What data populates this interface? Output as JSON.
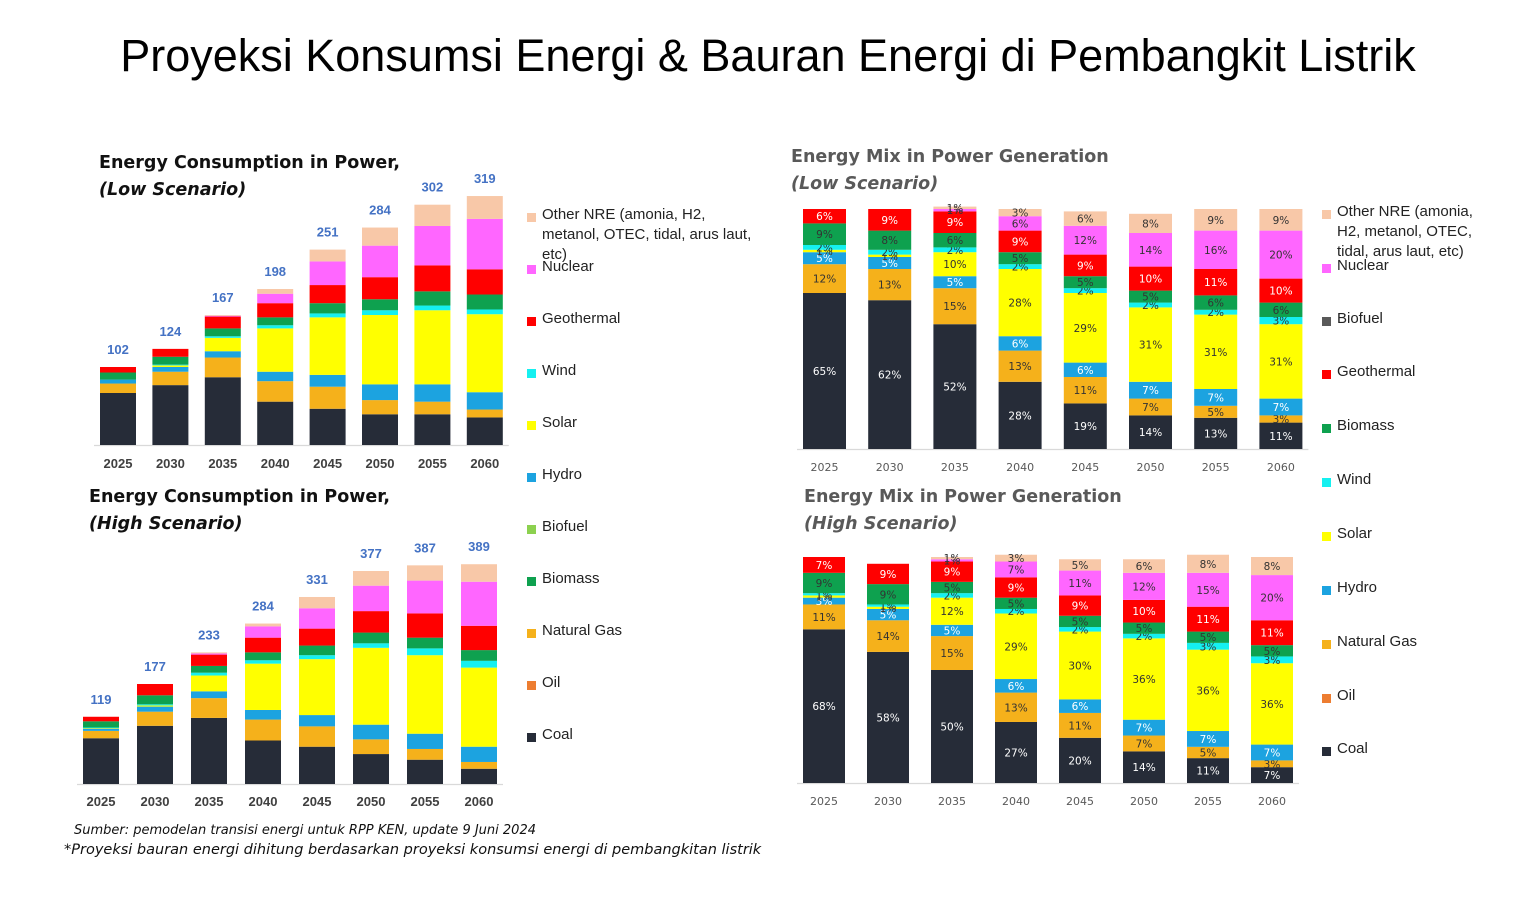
{
  "page_title": "Proyeksi Konsumsi Energi & Bauran Energi di Pembangkit Listrik",
  "colors": {
    "Coal": "#262c38",
    "Oil": "#ed7d31",
    "Natural Gas": "#f5b11b",
    "Biomass": "#0ea14f",
    "Biofuel": "#8cd14f",
    "Biofuel (mix)": "#595959",
    "Hydro": "#1ca3e0",
    "Solar": "#ffff00",
    "Wind": "#15f0f0",
    "Geothermal": "#ff0000",
    "Nuclear": "#ff66ff",
    "Other NRE": "#f8c8a8"
  },
  "legend_left": [
    {
      "key": "Other NRE",
      "label": "Other NRE (amonia, H2, metanol, OTEC, tidal, arus laut, etc)"
    },
    {
      "key": "Nuclear",
      "label": "Nuclear"
    },
    {
      "key": "Geothermal",
      "label": "Geothermal"
    },
    {
      "key": "Wind",
      "label": "Wind"
    },
    {
      "key": "Solar",
      "label": "Solar"
    },
    {
      "key": "Hydro",
      "label": "Hydro"
    },
    {
      "key": "Biofuel",
      "label": "Biofuel"
    },
    {
      "key": "Biomass",
      "label": "Biomass"
    },
    {
      "key": "Natural Gas",
      "label": "Natural Gas"
    },
    {
      "key": "Oil",
      "label": "Oil"
    },
    {
      "key": "Coal",
      "label": "Coal"
    }
  ],
  "legend_right": [
    {
      "key": "Other NRE",
      "label": "Other NRE (amonia, H2, metanol, OTEC, tidal, arus laut, etc)"
    },
    {
      "key": "Nuclear",
      "label": "Nuclear"
    },
    {
      "key": "Biofuel (mix)",
      "label": "Biofuel"
    },
    {
      "key": "Geothermal",
      "label": "Geothermal"
    },
    {
      "key": "Biomass",
      "label": "Biomass"
    },
    {
      "key": "Wind",
      "label": "Wind"
    },
    {
      "key": "Solar",
      "label": "Solar"
    },
    {
      "key": "Hydro",
      "label": "Hydro"
    },
    {
      "key": "Natural Gas",
      "label": "Natural Gas"
    },
    {
      "key": "Oil",
      "label": "Oil"
    },
    {
      "key": "Coal",
      "label": "Coal"
    }
  ],
  "footnote": {
    "source": "Sumber: pemodelan transisi energi untuk RPP KEN, update 9 Juni 2024",
    "note": "*Proyeksi bauran energi dihitung berdasarkan proyeksi konsumsi energi di pembangkitan listrik"
  },
  "chart_data": [
    {
      "id": "consumption_low",
      "type": "bar",
      "title": "Energy Consumption in Power,",
      "subtitle": "(Low Scenario)",
      "categories": [
        "2025",
        "2030",
        "2035",
        "2040",
        "2045",
        "2050",
        "2055",
        "2060"
      ],
      "totals": [
        102,
        124,
        167,
        198,
        251,
        284,
        302,
        319
      ],
      "ylim": [
        0,
        330
      ],
      "series": [
        {
          "name": "Coal",
          "values": [
            66,
            76,
            86,
            55,
            46,
            39,
            39,
            35
          ]
        },
        {
          "name": "Natural Gas",
          "values": [
            12,
            17,
            25,
            26,
            28,
            18,
            16,
            10
          ]
        },
        {
          "name": "Hydro",
          "values": [
            5,
            6,
            8,
            12,
            15,
            20,
            22,
            22
          ]
        },
        {
          "name": "Solar",
          "values": [
            0,
            2,
            17,
            55,
            73,
            88,
            94,
            99
          ]
        },
        {
          "name": "Wind",
          "values": [
            0,
            1,
            2,
            4,
            5,
            6,
            6,
            6
          ]
        },
        {
          "name": "Biomass",
          "values": [
            9,
            10,
            10,
            10,
            13,
            14,
            18,
            19
          ]
        },
        {
          "name": "Geothermal",
          "values": [
            7,
            10,
            15,
            18,
            23,
            28,
            33,
            32
          ]
        },
        {
          "name": "Nuclear",
          "values": [
            0,
            0,
            1,
            12,
            30,
            40,
            50,
            64
          ]
        },
        {
          "name": "Other NRE",
          "values": [
            0,
            0,
            1,
            6,
            15,
            23,
            27,
            29
          ]
        }
      ]
    },
    {
      "id": "consumption_high",
      "type": "bar",
      "title": "Energy Consumption in Power,",
      "subtitle": "(High Scenario)",
      "categories": [
        "2025",
        "2030",
        "2035",
        "2040",
        "2045",
        "2050",
        "2055",
        "2060"
      ],
      "totals": [
        119,
        177,
        233,
        284,
        331,
        377,
        387,
        389
      ],
      "ylim": [
        0,
        400
      ],
      "series": [
        {
          "name": "Coal",
          "values": [
            81,
            103,
            117,
            77,
            66,
            53,
            43,
            27
          ]
        },
        {
          "name": "Natural Gas",
          "values": [
            13,
            25,
            35,
            37,
            36,
            26,
            19,
            12
          ]
        },
        {
          "name": "Hydro",
          "values": [
            4,
            9,
            12,
            17,
            20,
            26,
            27,
            27
          ]
        },
        {
          "name": "Solar",
          "values": [
            1,
            2,
            28,
            82,
            99,
            136,
            139,
            140
          ]
        },
        {
          "name": "Wind",
          "values": [
            1,
            2,
            5,
            6,
            7,
            8,
            12,
            12
          ]
        },
        {
          "name": "Biomass",
          "values": [
            11,
            16,
            12,
            14,
            17,
            19,
            19,
            19
          ]
        },
        {
          "name": "Geothermal",
          "values": [
            8,
            20,
            20,
            26,
            30,
            38,
            43,
            43
          ]
        },
        {
          "name": "Nuclear",
          "values": [
            0,
            0,
            2,
            20,
            36,
            45,
            58,
            78
          ]
        },
        {
          "name": "Other NRE",
          "values": [
            0,
            0,
            2,
            5,
            20,
            26,
            27,
            31
          ]
        }
      ]
    },
    {
      "id": "mix_low",
      "type": "bar",
      "title": "Energy Mix in Power Generation",
      "subtitle": "(Low Scenario)",
      "categories": [
        "2025",
        "2030",
        "2035",
        "2040",
        "2045",
        "2050",
        "2055",
        "2060"
      ],
      "ylim": [
        0,
        100
      ],
      "series": [
        {
          "name": "Coal",
          "values": [
            65,
            62,
            52,
            28,
            19,
            14,
            13,
            11
          ],
          "labels": [
            "65%",
            "62%",
            "52%",
            "28%",
            "19%",
            "14%",
            "13%",
            "11%"
          ]
        },
        {
          "name": "Natural Gas",
          "values": [
            12,
            13,
            15,
            13,
            11,
            7,
            5,
            3
          ],
          "labels": [
            "12%",
            "13%",
            "15%",
            "13%",
            "11%",
            "7%",
            "5%",
            "3%"
          ]
        },
        {
          "name": "Hydro",
          "values": [
            5,
            5,
            5,
            6,
            6,
            7,
            7,
            7
          ],
          "labels": [
            "5%",
            "5%",
            "5%",
            "6%",
            "6%",
            "7%",
            "7%",
            "7%"
          ]
        },
        {
          "name": "Solar",
          "values": [
            1,
            1,
            10,
            28,
            29,
            31,
            31,
            31
          ],
          "labels": [
            "1%",
            "1%",
            "10%",
            "28%",
            "29%",
            "31%",
            "31%",
            "31%"
          ]
        },
        {
          "name": "Wind",
          "values": [
            2,
            2,
            2,
            2,
            2,
            2,
            2,
            3
          ],
          "labels": [
            "2%",
            "2%",
            "2%",
            "2%",
            "2%",
            "2%",
            "2%",
            "3%"
          ]
        },
        {
          "name": "Biomass",
          "values": [
            9,
            8,
            6,
            5,
            5,
            5,
            6,
            6
          ],
          "labels": [
            "9%",
            "8%",
            "6%",
            "5%",
            "5%",
            "5%",
            "6%",
            "6%"
          ]
        },
        {
          "name": "Geothermal",
          "values": [
            6,
            9,
            9,
            9,
            9,
            10,
            11,
            10
          ],
          "labels": [
            "6%",
            "9%",
            "9%",
            "9%",
            "9%",
            "10%",
            "11%",
            "10%"
          ]
        },
        {
          "name": "Nuclear",
          "values": [
            0,
            0,
            1,
            6,
            12,
            14,
            16,
            20
          ],
          "labels": [
            "0%",
            "0%",
            "1%",
            "6%",
            "12%",
            "14%",
            "16%",
            "20%"
          ]
        },
        {
          "name": "Other NRE",
          "values": [
            0,
            0,
            1,
            3,
            6,
            8,
            9,
            9
          ],
          "labels": [
            "0%",
            "0%",
            "1%",
            "3%",
            "6%",
            "8%",
            "9%",
            "9%"
          ]
        }
      ]
    },
    {
      "id": "mix_high",
      "type": "bar",
      "title": "Energy Mix in Power Generation",
      "subtitle": "(High Scenario)",
      "categories": [
        "2025",
        "2030",
        "2035",
        "2040",
        "2045",
        "2050",
        "2055",
        "2060"
      ],
      "ylim": [
        0,
        100
      ],
      "series": [
        {
          "name": "Coal",
          "values": [
            68,
            58,
            50,
            27,
            20,
            14,
            11,
            7
          ],
          "labels": [
            "68%",
            "58%",
            "50%",
            "27%",
            "20%",
            "14%",
            "11%",
            "7%"
          ]
        },
        {
          "name": "Natural Gas",
          "values": [
            11,
            14,
            15,
            13,
            11,
            7,
            5,
            3
          ],
          "labels": [
            "11%",
            "14%",
            "15%",
            "13%",
            "11%",
            "7%",
            "5%",
            "3%"
          ]
        },
        {
          "name": "Hydro",
          "values": [
            3,
            5,
            5,
            6,
            6,
            7,
            7,
            7
          ],
          "labels": [
            "3%",
            "5%",
            "5%",
            "6%",
            "6%",
            "7%",
            "7%",
            "7%"
          ]
        },
        {
          "name": "Solar",
          "values": [
            1,
            1,
            12,
            29,
            30,
            36,
            36,
            36
          ],
          "labels": [
            "1%",
            "1%",
            "12%",
            "29%",
            "30%",
            "36%",
            "36%",
            "36%"
          ]
        },
        {
          "name": "Wind",
          "values": [
            1,
            1,
            2,
            2,
            2,
            2,
            3,
            3
          ],
          "labels": [
            "1%",
            "1%",
            "2%",
            "2%",
            "2%",
            "2%",
            "3%",
            "3%"
          ]
        },
        {
          "name": "Biomass",
          "values": [
            9,
            9,
            5,
            5,
            5,
            5,
            5,
            5
          ],
          "labels": [
            "9%",
            "9%",
            "5%",
            "5%",
            "5%",
            "5%",
            "5%",
            "5%"
          ]
        },
        {
          "name": "Geothermal",
          "values": [
            7,
            9,
            9,
            9,
            9,
            10,
            11,
            11
          ],
          "labels": [
            "7%",
            "9%",
            "9%",
            "9%",
            "9%",
            "10%",
            "11%",
            "11%"
          ]
        },
        {
          "name": "Nuclear",
          "values": [
            0,
            0,
            1,
            7,
            11,
            12,
            15,
            20
          ],
          "labels": [
            "0%",
            "0%",
            "1%",
            "7%",
            "11%",
            "12%",
            "15%",
            "20%"
          ]
        },
        {
          "name": "Other NRE",
          "values": [
            0,
            0,
            1,
            3,
            5,
            6,
            8,
            8
          ],
          "labels": [
            "0%",
            "0%",
            "1%",
            "3%",
            "5%",
            "6%",
            "8%",
            "8%"
          ]
        }
      ]
    }
  ]
}
